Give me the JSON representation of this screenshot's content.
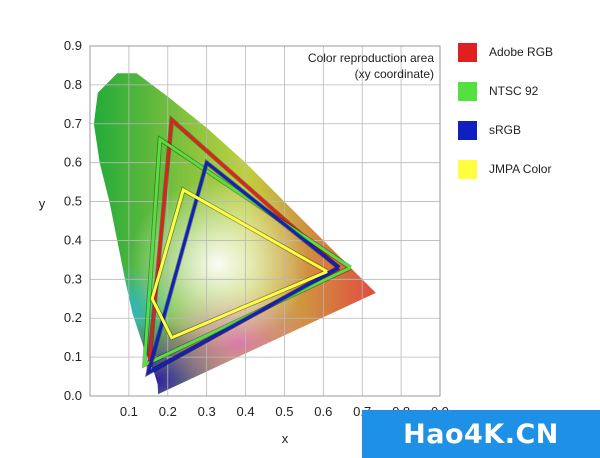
{
  "chart_data": {
    "type": "line",
    "title": "Color reproduction area",
    "subtitle": "(xy coordinate)",
    "xlabel": "x",
    "ylabel": "y",
    "xlim": [
      0,
      0.9
    ],
    "ylim": [
      0,
      0.9
    ],
    "x_ticks": [
      "0.1",
      "0.2",
      "0.3",
      "0.4",
      "0.5",
      "0.6",
      "0.7",
      "0.8",
      "0.9"
    ],
    "y_ticks": [
      "0.0",
      "0.1",
      "0.2",
      "0.3",
      "0.4",
      "0.5",
      "0.6",
      "0.7",
      "0.8",
      "0.9"
    ],
    "grid": true,
    "legend_position": "right",
    "series": [
      {
        "name": "Adobe RGB",
        "color": "#e02020",
        "points": [
          [
            0.64,
            0.33
          ],
          [
            0.21,
            0.71
          ],
          [
            0.15,
            0.06
          ],
          [
            0.64,
            0.33
          ]
        ]
      },
      {
        "name": "NTSC 92",
        "color": "#55e040",
        "points": [
          [
            0.67,
            0.33
          ],
          [
            0.18,
            0.66
          ],
          [
            0.14,
            0.08
          ],
          [
            0.67,
            0.33
          ]
        ]
      },
      {
        "name": "sRGB",
        "color": "#1020c0",
        "points": [
          [
            0.64,
            0.33
          ],
          [
            0.3,
            0.6
          ],
          [
            0.15,
            0.06
          ],
          [
            0.64,
            0.33
          ]
        ]
      },
      {
        "name": "JMPA Color",
        "color": "#ffff40",
        "points": [
          [
            0.61,
            0.32
          ],
          [
            0.24,
            0.53
          ],
          [
            0.16,
            0.25
          ],
          [
            0.21,
            0.15
          ],
          [
            0.61,
            0.32
          ]
        ]
      }
    ],
    "locus_colors": {
      "green": "#1faa3a",
      "cyan": "#2ab8e0",
      "blue": "#4030a0",
      "red": "#e83040",
      "white": "#ffffff"
    }
  },
  "watermark": {
    "text": "Hao4K.CN"
  }
}
